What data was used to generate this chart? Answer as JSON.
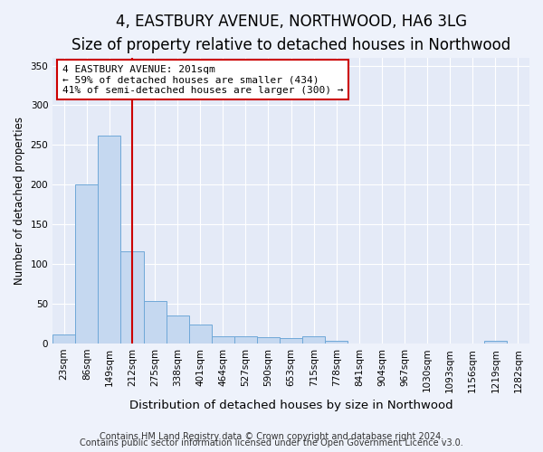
{
  "title1": "4, EASTBURY AVENUE, NORTHWOOD, HA6 3LG",
  "title2": "Size of property relative to detached houses in Northwood",
  "xlabel": "Distribution of detached houses by size in Northwood",
  "ylabel": "Number of detached properties",
  "categories": [
    "23sqm",
    "86sqm",
    "149sqm",
    "212sqm",
    "275sqm",
    "338sqm",
    "401sqm",
    "464sqm",
    "527sqm",
    "590sqm",
    "653sqm",
    "715sqm",
    "778sqm",
    "841sqm",
    "904sqm",
    "967sqm",
    "1030sqm",
    "1093sqm",
    "1156sqm",
    "1219sqm",
    "1282sqm"
  ],
  "values": [
    12,
    200,
    262,
    116,
    53,
    35,
    24,
    9,
    9,
    8,
    7,
    9,
    4,
    0,
    0,
    0,
    0,
    0,
    0,
    3,
    0
  ],
  "bar_color": "#c5d8f0",
  "bar_edge_color": "#6fa8d8",
  "vline_x": 3,
  "vline_color": "#cc0000",
  "annotation_text": "4 EASTBURY AVENUE: 201sqm\n← 59% of detached houses are smaller (434)\n41% of semi-detached houses are larger (300) →",
  "annotation_box_color": "#ffffff",
  "annotation_box_edge": "#cc0000",
  "ylim": [
    0,
    360
  ],
  "yticks": [
    0,
    50,
    100,
    150,
    200,
    250,
    300,
    350
  ],
  "bg_color": "#eef2fb",
  "plot_bg_color": "#e4eaf7",
  "footer1": "Contains HM Land Registry data © Crown copyright and database right 2024.",
  "footer2": "Contains public sector information licensed under the Open Government Licence v3.0.",
  "title1_fontsize": 12,
  "title2_fontsize": 10,
  "xlabel_fontsize": 9.5,
  "ylabel_fontsize": 8.5,
  "tick_fontsize": 7.5,
  "annotation_fontsize": 8,
  "footer_fontsize": 7
}
